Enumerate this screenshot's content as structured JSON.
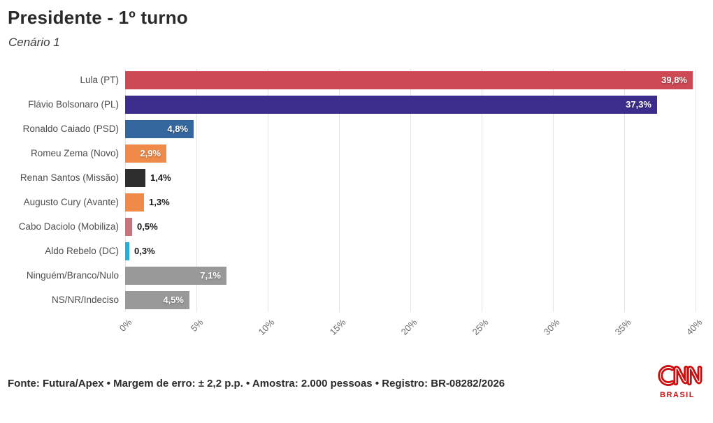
{
  "header": {
    "title": "Presidente - 1º turno",
    "subtitle": "Cenário 1"
  },
  "chart_data": {
    "type": "bar",
    "orientation": "horizontal",
    "title": "Presidente - 1º turno",
    "subtitle": "Cenário 1",
    "categories": [
      "Lula (PT)",
      "Flávio Bolsonaro (PL)",
      "Ronaldo Caiado (PSD)",
      "Romeu Zema (Novo)",
      "Renan Santos (Missão)",
      "Augusto Cury (Avante)",
      "Cabo Daciolo (Mobiliza)",
      "Aldo Rebelo (DC)",
      "Ninguém/Branco/Nulo",
      "NS/NR/Indeciso"
    ],
    "values": [
      39.8,
      37.3,
      4.8,
      2.9,
      1.4,
      1.3,
      0.5,
      0.3,
      7.1,
      4.5
    ],
    "value_labels": [
      "39,8%",
      "37,3%",
      "4,8%",
      "2,9%",
      "1,4%",
      "1,3%",
      "0,5%",
      "0,3%",
      "7,1%",
      "4,5%"
    ],
    "bar_colors": [
      "#cd4a55",
      "#3c2d8c",
      "#34679d",
      "#ef8a49",
      "#2e2e2e",
      "#ef8a49",
      "#c9747b",
      "#29aed5",
      "#999999",
      "#999999"
    ],
    "xlabel": "",
    "ylabel": "",
    "xlim": [
      0,
      40
    ],
    "x_ticks": [
      "0%",
      "5%",
      "10%",
      "15%",
      "20%",
      "25%",
      "30%",
      "35%",
      "40%"
    ],
    "grid": "vertical",
    "legend": "none"
  },
  "footer": {
    "source_line": "Fonte: Futura/Apex • Margem de erro: ± 2,2 p.p. • Amostra: 2.000 pessoas • Registro: BR-08282/2026"
  },
  "logo": {
    "brand": "CNN",
    "region": "BRASIL"
  },
  "colors": {
    "logo_red": "#cc0d0d",
    "grid": "#e4e4e4",
    "category_label": "#4d4d4d",
    "tick_label": "#6b6b6b",
    "value_inside": "#ffffff",
    "value_outside": "#1a1a1a"
  }
}
